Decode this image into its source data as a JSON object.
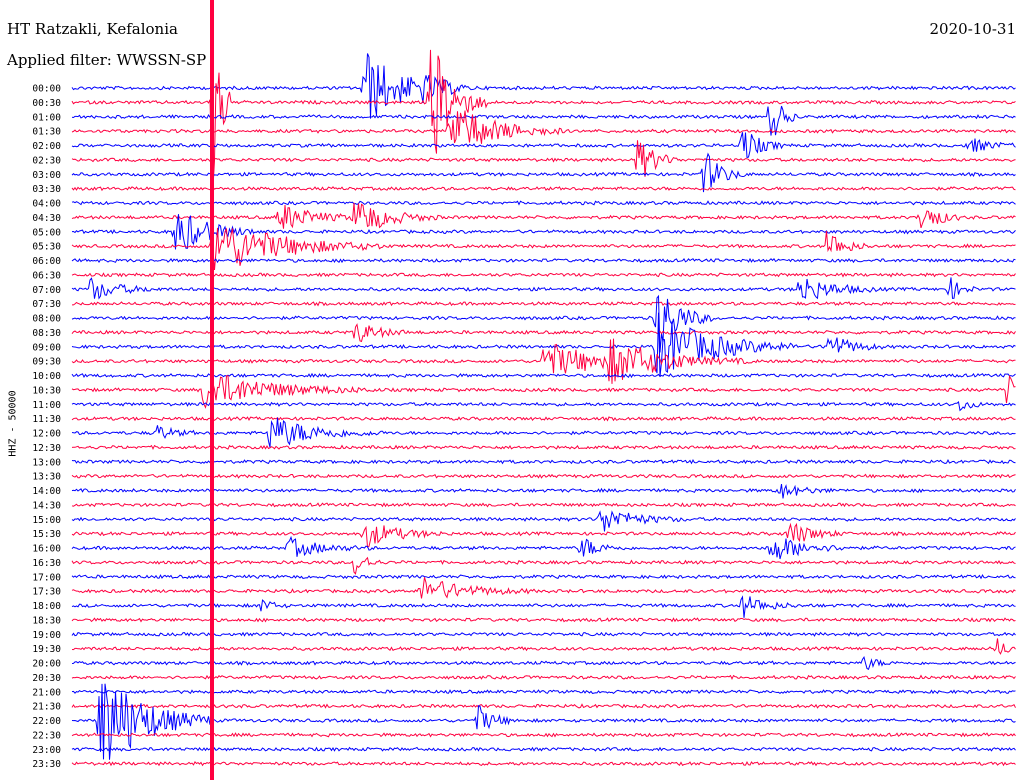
{
  "header": {
    "station": "HT Ratzakli, Kefalonia",
    "filter": "Applied filter: WWSSN-SP",
    "date": "2020-10-31"
  },
  "chart_data": {
    "type": "line",
    "title": "HT Ratzakli, Kefalonia",
    "subtitle": "Applied filter: WWSSN-SP",
    "date": "2020-10-31",
    "ylabel": "HHZ - 50000",
    "xlabel": "",
    "row_labels": [
      "00:00",
      "00:30",
      "01:00",
      "01:30",
      "02:00",
      "02:30",
      "03:00",
      "03:30",
      "04:00",
      "04:30",
      "05:00",
      "05:30",
      "06:00",
      "06:30",
      "07:00",
      "07:30",
      "08:00",
      "08:30",
      "09:00",
      "09:30",
      "10:00",
      "10:30",
      "11:00",
      "11:30",
      "12:00",
      "12:30",
      "13:00",
      "13:30",
      "14:00",
      "14:30",
      "15:00",
      "15:30",
      "16:00",
      "16:30",
      "17:00",
      "17:30",
      "18:00",
      "18:30",
      "19:00",
      "19:30",
      "20:00",
      "20:30",
      "21:00",
      "21:30",
      "22:00",
      "22:30",
      "23:00",
      "23:30"
    ],
    "row_colors": [
      "#0000ff",
      "#ff0040"
    ],
    "grid": false,
    "events": [
      {
        "row": 0,
        "x": 0.31,
        "amp": 40,
        "dur": 0.035
      },
      {
        "row": 0,
        "x": 0.37,
        "amp": 10,
        "dur": 0.02
      },
      {
        "row": 1,
        "x": 0.15,
        "amp": 160,
        "dur": 0.006
      },
      {
        "row": 1,
        "x": 0.38,
        "amp": 70,
        "dur": 0.02
      },
      {
        "row": 2,
        "x": 0.74,
        "amp": 30,
        "dur": 0.01
      },
      {
        "row": 3,
        "x": 0.4,
        "amp": 30,
        "dur": 0.04
      },
      {
        "row": 4,
        "x": 0.71,
        "amp": 20,
        "dur": 0.015
      },
      {
        "row": 4,
        "x": 0.95,
        "amp": 8,
        "dur": 0.02
      },
      {
        "row": 5,
        "x": 0.6,
        "amp": 25,
        "dur": 0.015
      },
      {
        "row": 6,
        "x": 0.67,
        "amp": 25,
        "dur": 0.015
      },
      {
        "row": 9,
        "x": 0.22,
        "amp": 15,
        "dur": 0.03
      },
      {
        "row": 9,
        "x": 0.3,
        "amp": 20,
        "dur": 0.03
      },
      {
        "row": 9,
        "x": 0.9,
        "amp": 18,
        "dur": 0.015
      },
      {
        "row": 10,
        "x": 0.11,
        "amp": 25,
        "dur": 0.03
      },
      {
        "row": 11,
        "x": 0.15,
        "amp": 30,
        "dur": 0.06
      },
      {
        "row": 11,
        "x": 0.8,
        "amp": 18,
        "dur": 0.015
      },
      {
        "row": 14,
        "x": 0.02,
        "amp": 12,
        "dur": 0.025
      },
      {
        "row": 14,
        "x": 0.77,
        "amp": 15,
        "dur": 0.03
      },
      {
        "row": 14,
        "x": 0.93,
        "amp": 12,
        "dur": 0.01
      },
      {
        "row": 16,
        "x": 0.62,
        "amp": 40,
        "dur": 0.02
      },
      {
        "row": 17,
        "x": 0.3,
        "amp": 12,
        "dur": 0.02
      },
      {
        "row": 18,
        "x": 0.62,
        "amp": 35,
        "dur": 0.05
      },
      {
        "row": 18,
        "x": 0.8,
        "amp": 15,
        "dur": 0.02
      },
      {
        "row": 19,
        "x": 0.5,
        "amp": 20,
        "dur": 0.05
      },
      {
        "row": 19,
        "x": 0.57,
        "amp": 20,
        "dur": 0.05
      },
      {
        "row": 21,
        "x": 0.14,
        "amp": 20,
        "dur": 0.06
      },
      {
        "row": 21,
        "x": 0.99,
        "amp": 15,
        "dur": 0.02
      },
      {
        "row": 22,
        "x": 0.94,
        "amp": 8,
        "dur": 0.01
      },
      {
        "row": 24,
        "x": 0.21,
        "amp": 18,
        "dur": 0.04
      },
      {
        "row": 24,
        "x": 0.09,
        "amp": 8,
        "dur": 0.015
      },
      {
        "row": 28,
        "x": 0.75,
        "amp": 8,
        "dur": 0.02
      },
      {
        "row": 30,
        "x": 0.56,
        "amp": 14,
        "dur": 0.03
      },
      {
        "row": 31,
        "x": 0.31,
        "amp": 14,
        "dur": 0.03
      },
      {
        "row": 31,
        "x": 0.76,
        "amp": 14,
        "dur": 0.02
      },
      {
        "row": 32,
        "x": 0.23,
        "amp": 10,
        "dur": 0.03
      },
      {
        "row": 32,
        "x": 0.54,
        "amp": 12,
        "dur": 0.015
      },
      {
        "row": 32,
        "x": 0.74,
        "amp": 15,
        "dur": 0.03
      },
      {
        "row": 33,
        "x": 0.3,
        "amp": 15,
        "dur": 0.01
      },
      {
        "row": 35,
        "x": 0.37,
        "amp": 14,
        "dur": 0.04
      },
      {
        "row": 36,
        "x": 0.2,
        "amp": 8,
        "dur": 0.01
      },
      {
        "row": 36,
        "x": 0.71,
        "amp": 12,
        "dur": 0.02
      },
      {
        "row": 39,
        "x": 0.98,
        "amp": 10,
        "dur": 0.01
      },
      {
        "row": 40,
        "x": 0.84,
        "amp": 8,
        "dur": 0.01
      },
      {
        "row": 44,
        "x": 0.43,
        "amp": 15,
        "dur": 0.015
      },
      {
        "row": 44,
        "x": 0.03,
        "amp": 60,
        "dur": 0.04
      }
    ]
  }
}
